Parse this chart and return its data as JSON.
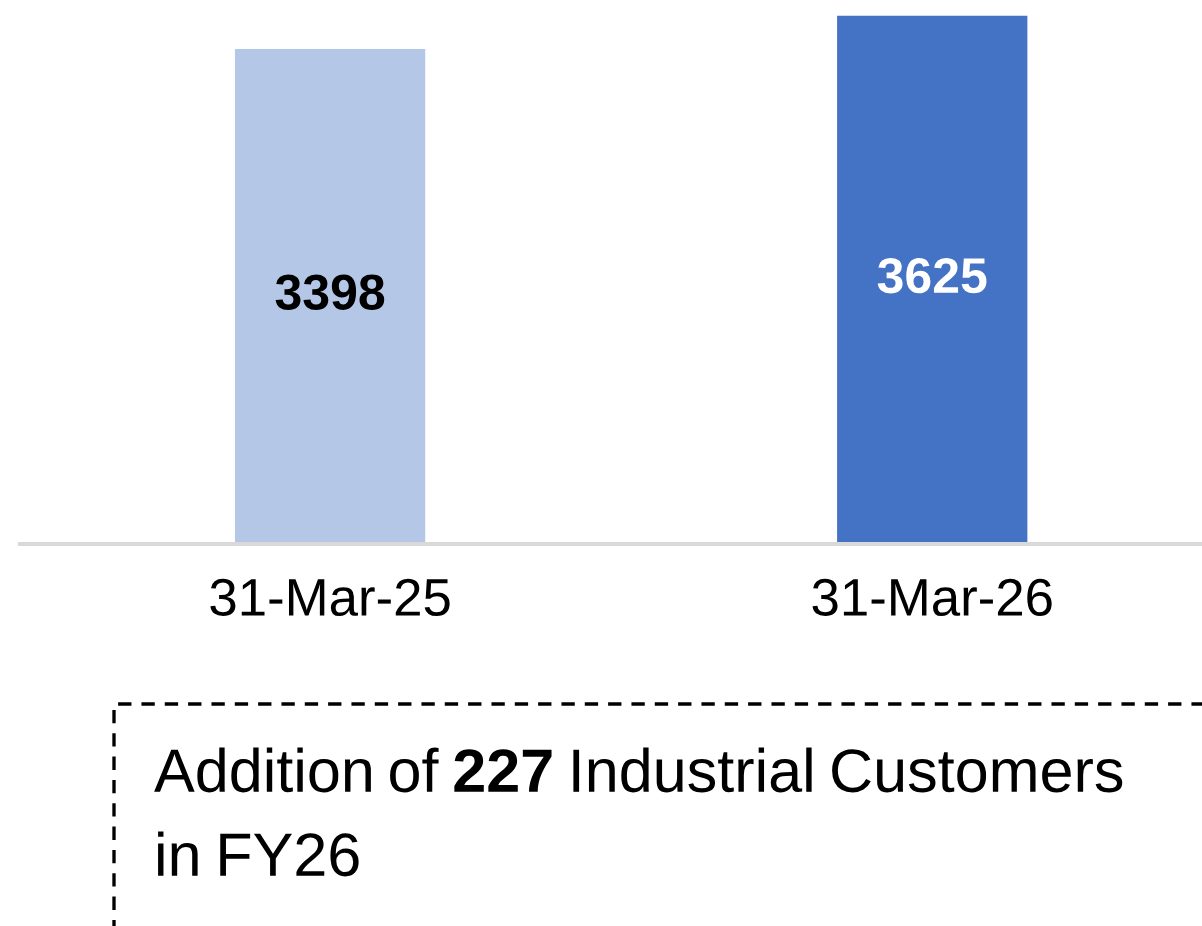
{
  "chart_data": {
    "type": "bar",
    "categories": [
      "31-Mar-25",
      "31-Mar-26"
    ],
    "values": [
      3398,
      3625
    ],
    "colors": [
      "#b4c7e7",
      "#4472c4"
    ],
    "data_labels": true,
    "annotations": [
      "Addition of 227 Industrial Customers in FY26"
    ]
  }
}
